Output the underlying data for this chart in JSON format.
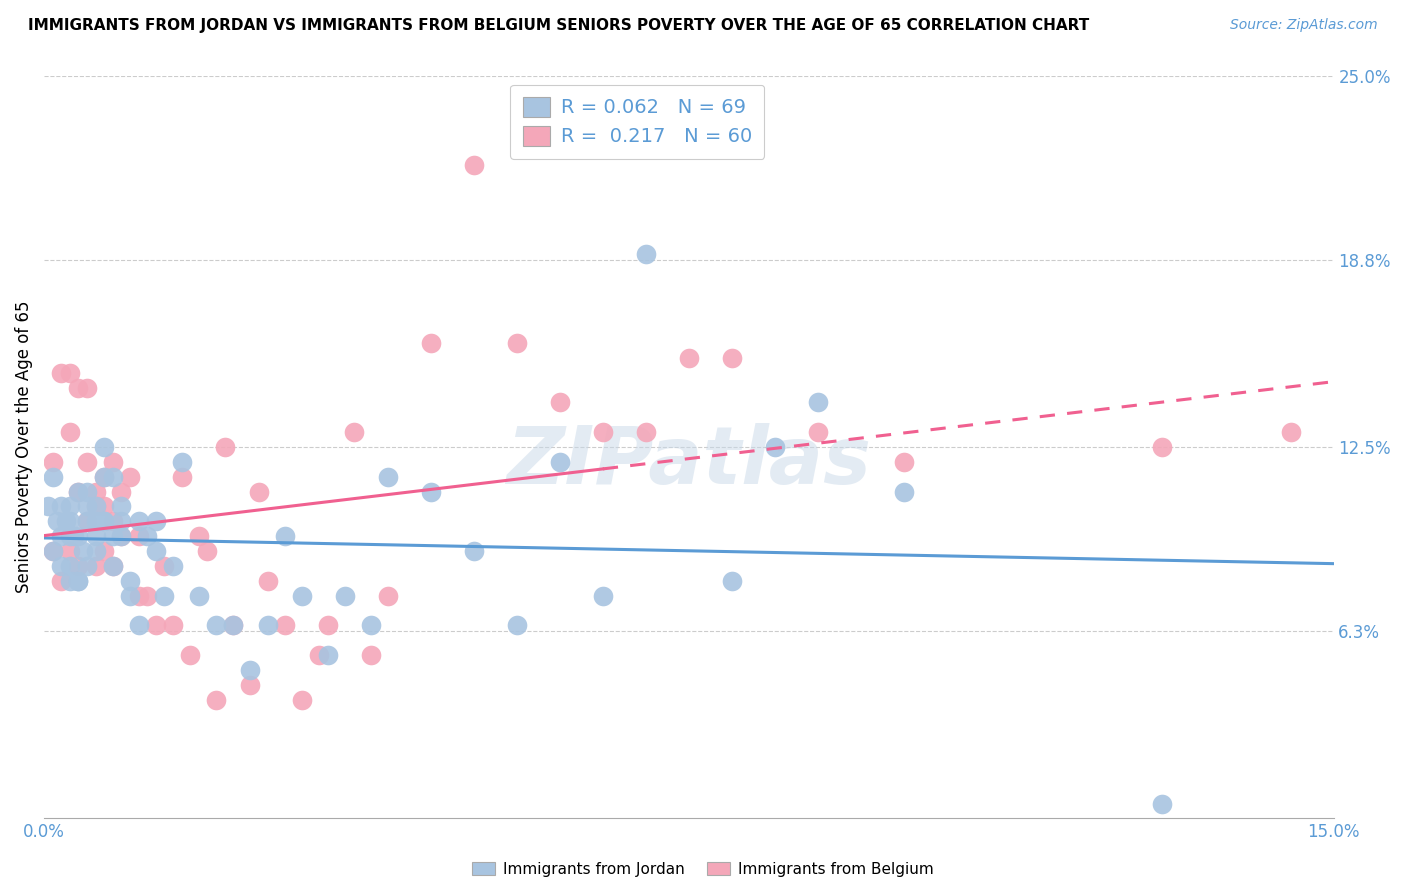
{
  "title": "IMMIGRANTS FROM JORDAN VS IMMIGRANTS FROM BELGIUM SENIORS POVERTY OVER THE AGE OF 65 CORRELATION CHART",
  "source": "Source: ZipAtlas.com",
  "ylabel": "Seniors Poverty Over the Age of 65",
  "xlim": [
    0,
    0.15
  ],
  "ylim": [
    0,
    0.25
  ],
  "ytick_labels": [
    "6.3%",
    "12.5%",
    "18.8%",
    "25.0%"
  ],
  "ytick_vals": [
    0.063,
    0.125,
    0.188,
    0.25
  ],
  "legend_label1": "Immigrants from Jordan",
  "legend_label2": "Immigrants from Belgium",
  "r1": "0.062",
  "n1": "69",
  "r2": "0.217",
  "n2": "60",
  "color_jordan": "#a8c4e0",
  "color_belgium": "#f4a7b9",
  "color_jordan_line": "#5b9bd5",
  "color_belgium_line": "#f06090",
  "watermark": "ZIPatlas",
  "jordan_x": [
    0.0005,
    0.001,
    0.001,
    0.0015,
    0.002,
    0.002,
    0.002,
    0.0025,
    0.003,
    0.003,
    0.003,
    0.003,
    0.003,
    0.0035,
    0.004,
    0.004,
    0.004,
    0.004,
    0.0045,
    0.005,
    0.005,
    0.005,
    0.005,
    0.006,
    0.006,
    0.006,
    0.006,
    0.007,
    0.007,
    0.007,
    0.007,
    0.008,
    0.008,
    0.008,
    0.009,
    0.009,
    0.009,
    0.01,
    0.01,
    0.011,
    0.011,
    0.012,
    0.013,
    0.013,
    0.014,
    0.015,
    0.016,
    0.018,
    0.02,
    0.022,
    0.024,
    0.026,
    0.028,
    0.03,
    0.033,
    0.035,
    0.038,
    0.04,
    0.045,
    0.05,
    0.055,
    0.06,
    0.065,
    0.07,
    0.08,
    0.085,
    0.09,
    0.1,
    0.13
  ],
  "jordan_y": [
    0.105,
    0.115,
    0.09,
    0.1,
    0.105,
    0.095,
    0.085,
    0.1,
    0.1,
    0.105,
    0.095,
    0.085,
    0.08,
    0.095,
    0.08,
    0.11,
    0.095,
    0.08,
    0.09,
    0.1,
    0.11,
    0.105,
    0.085,
    0.095,
    0.1,
    0.105,
    0.09,
    0.1,
    0.115,
    0.1,
    0.125,
    0.115,
    0.095,
    0.085,
    0.095,
    0.1,
    0.105,
    0.08,
    0.075,
    0.065,
    0.1,
    0.095,
    0.09,
    0.1,
    0.075,
    0.085,
    0.12,
    0.075,
    0.065,
    0.065,
    0.05,
    0.065,
    0.095,
    0.075,
    0.055,
    0.075,
    0.065,
    0.115,
    0.11,
    0.09,
    0.065,
    0.12,
    0.075,
    0.19,
    0.08,
    0.125,
    0.14,
    0.11,
    0.005
  ],
  "belgium_x": [
    0.001,
    0.001,
    0.002,
    0.002,
    0.003,
    0.003,
    0.003,
    0.004,
    0.004,
    0.004,
    0.005,
    0.005,
    0.005,
    0.006,
    0.006,
    0.006,
    0.007,
    0.007,
    0.007,
    0.008,
    0.008,
    0.008,
    0.009,
    0.009,
    0.01,
    0.011,
    0.011,
    0.012,
    0.013,
    0.014,
    0.015,
    0.016,
    0.017,
    0.018,
    0.019,
    0.02,
    0.021,
    0.022,
    0.024,
    0.025,
    0.026,
    0.028,
    0.03,
    0.032,
    0.033,
    0.036,
    0.038,
    0.04,
    0.045,
    0.05,
    0.055,
    0.06,
    0.065,
    0.07,
    0.075,
    0.08,
    0.09,
    0.1,
    0.13,
    0.145
  ],
  "belgium_y": [
    0.09,
    0.12,
    0.08,
    0.15,
    0.15,
    0.13,
    0.09,
    0.145,
    0.11,
    0.085,
    0.145,
    0.1,
    0.12,
    0.105,
    0.085,
    0.11,
    0.115,
    0.09,
    0.105,
    0.12,
    0.1,
    0.085,
    0.11,
    0.095,
    0.115,
    0.075,
    0.095,
    0.075,
    0.065,
    0.085,
    0.065,
    0.115,
    0.055,
    0.095,
    0.09,
    0.04,
    0.125,
    0.065,
    0.045,
    0.11,
    0.08,
    0.065,
    0.04,
    0.055,
    0.065,
    0.13,
    0.055,
    0.075,
    0.16,
    0.22,
    0.16,
    0.14,
    0.13,
    0.13,
    0.155,
    0.155,
    0.13,
    0.12,
    0.125,
    0.13
  ]
}
